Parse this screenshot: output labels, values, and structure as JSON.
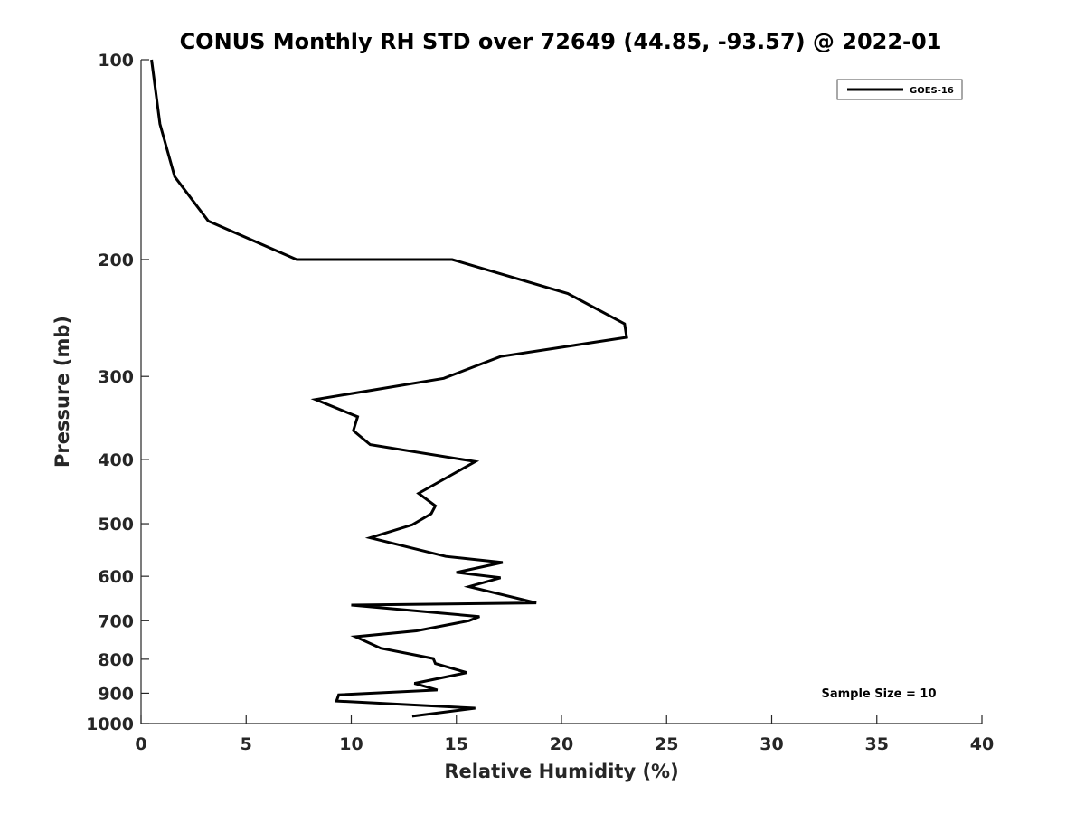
{
  "chart_data": {
    "type": "line",
    "title": "CONUS Monthly RH STD over 72649 (44.85, -93.57) @ 2022-01",
    "xlabel": "Relative Humidity (%)",
    "ylabel": "Pressure (mb)",
    "xlim": [
      0,
      40
    ],
    "ylim": [
      100,
      1000
    ],
    "y_scale": "log",
    "y_reversed": true,
    "grid": false,
    "legend_position": "top-right",
    "x_ticks": [
      "0",
      "5",
      "10",
      "15",
      "20",
      "25",
      "30",
      "35",
      "40"
    ],
    "y_ticks": [
      "100",
      "200",
      "300",
      "400",
      "500",
      "600",
      "700",
      "800",
      "900",
      "1000"
    ],
    "x_tick_values": [
      0,
      5,
      10,
      15,
      20,
      25,
      30,
      35,
      40
    ],
    "y_tick_values": [
      100,
      200,
      300,
      400,
      500,
      600,
      700,
      800,
      900,
      1000
    ],
    "annotation": "Sample Size = 10",
    "colors": {
      "series": "#000000",
      "axis": "#262626"
    },
    "series": [
      {
        "name": "GOES-16",
        "points": [
          [
            0.5,
            100
          ],
          [
            0.9,
            125
          ],
          [
            1.6,
            150
          ],
          [
            3.2,
            175
          ],
          [
            7.4,
            200
          ],
          [
            14.8,
            200
          ],
          [
            20.3,
            225
          ],
          [
            23.0,
            250
          ],
          [
            23.1,
            262
          ],
          [
            17.1,
            280
          ],
          [
            14.4,
            302
          ],
          [
            8.3,
            325
          ],
          [
            10.3,
            345
          ],
          [
            10.1,
            362
          ],
          [
            10.9,
            380
          ],
          [
            15.9,
            403
          ],
          [
            13.2,
            450
          ],
          [
            14.0,
            470
          ],
          [
            13.8,
            483
          ],
          [
            12.9,
            502
          ],
          [
            10.9,
            525
          ],
          [
            14.5,
            560
          ],
          [
            17.2,
            572
          ],
          [
            15.0,
            592
          ],
          [
            17.1,
            603
          ],
          [
            15.6,
            622
          ],
          [
            18.8,
            658
          ],
          [
            10.0,
            663
          ],
          [
            16.1,
            690
          ],
          [
            15.6,
            700
          ],
          [
            13.1,
            725
          ],
          [
            10.2,
            740
          ],
          [
            11.4,
            770
          ],
          [
            13.9,
            798
          ],
          [
            14.0,
            812
          ],
          [
            15.5,
            838
          ],
          [
            13.0,
            870
          ],
          [
            14.1,
            890
          ],
          [
            9.4,
            905
          ],
          [
            9.3,
            925
          ],
          [
            15.9,
            948
          ],
          [
            12.9,
            975
          ]
        ]
      }
    ]
  }
}
